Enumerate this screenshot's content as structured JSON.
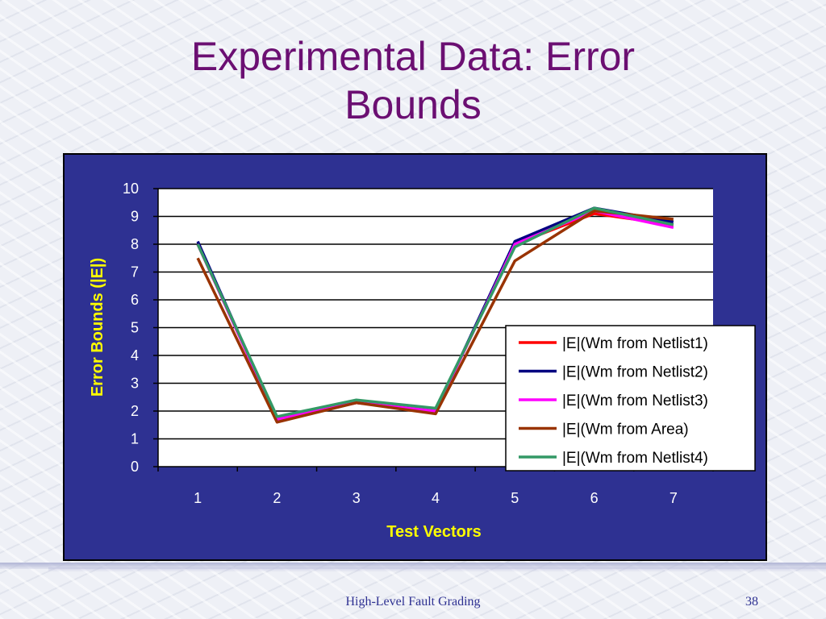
{
  "slide": {
    "title_line1": "Experimental Data: Error",
    "title_line2": "Bounds",
    "footer": "High-Level Fault Grading",
    "page_number": "38"
  },
  "colors": {
    "panel": "#2e3192",
    "title": "#6b0f72",
    "axis_label": "#ffff00"
  },
  "chart_data": {
    "type": "line",
    "title": "",
    "xlabel": "Test Vectors",
    "ylabel": "Error Bounds (|E|)",
    "categories": [
      "1",
      "2",
      "3",
      "4",
      "5",
      "6",
      "7"
    ],
    "ylim": [
      0,
      10
    ],
    "yticks": [
      "0",
      "1",
      "2",
      "3",
      "4",
      "5",
      "6",
      "7",
      "8",
      "9",
      "10"
    ],
    "grid": "horizontal",
    "legend_position": "lower-right",
    "series": [
      {
        "name": "|E|(Wm from Netlist1)",
        "color": "#ff0000",
        "values": [
          8.0,
          1.7,
          2.3,
          2.0,
          8.0,
          9.1,
          8.7
        ]
      },
      {
        "name": "|E|(Wm from Netlist2)",
        "color": "#000080",
        "values": [
          8.1,
          1.7,
          2.3,
          2.0,
          8.1,
          9.3,
          8.8
        ]
      },
      {
        "name": "|E|(Wm from Netlist3)",
        "color": "#ff00ff",
        "values": [
          8.0,
          1.7,
          2.3,
          2.0,
          8.0,
          9.2,
          8.6
        ]
      },
      {
        "name": "|E|(Wm from Area)",
        "color": "#993300",
        "values": [
          7.5,
          1.6,
          2.3,
          1.9,
          7.4,
          9.2,
          8.9
        ]
      },
      {
        "name": "|E|(Wm from Netlist4)",
        "color": "#339966",
        "values": [
          8.0,
          1.8,
          2.4,
          2.1,
          7.9,
          9.3,
          8.7
        ]
      }
    ]
  }
}
